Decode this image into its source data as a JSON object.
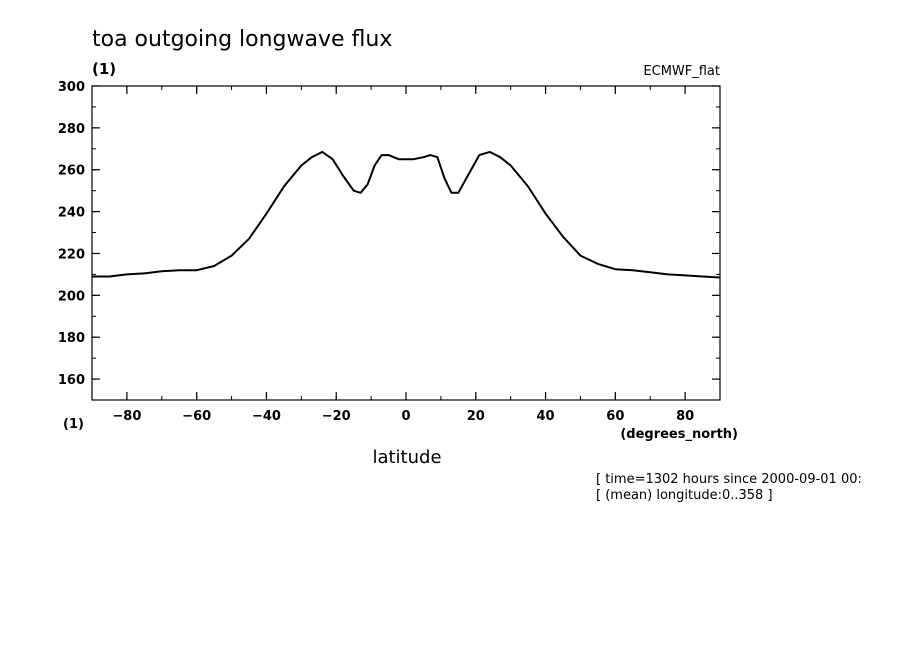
{
  "chart_data": {
    "type": "line",
    "title": "toa outgoing longwave flux",
    "y_unit": "(1)",
    "x_unit_left": "(1)",
    "dataset": "ECMWF_flat",
    "xlabel": "latitude",
    "xunits": "(degrees_north)",
    "xlim": [
      -90,
      90
    ],
    "ylim": [
      150,
      300
    ],
    "xticks": [
      -80,
      -60,
      -40,
      -20,
      0,
      20,
      40,
      60,
      80
    ],
    "yticks": [
      160,
      180,
      200,
      220,
      240,
      260,
      280,
      300
    ],
    "annotations": [
      "[ time=1302 hours since 2000-09-01 00:",
      "[ (mean) longitude:0..358 ]"
    ],
    "series": [
      {
        "x": [
          -90,
          -85,
          -80,
          -75,
          -70,
          -65,
          -60,
          -55,
          -50,
          -45,
          -40,
          -35,
          -30,
          -27,
          -24,
          -21,
          -18,
          -15,
          -13,
          -11,
          -9,
          -7,
          -5,
          -2,
          0,
          2,
          5,
          7,
          9,
          11,
          13,
          15,
          18,
          21,
          24,
          27,
          30,
          35,
          40,
          45,
          50,
          55,
          60,
          65,
          70,
          75,
          80,
          85,
          90
        ],
        "y": [
          209,
          209,
          210,
          210.5,
          211.5,
          212,
          212,
          214,
          219,
          227,
          239,
          252,
          262,
          266,
          268.5,
          265,
          257,
          250,
          249,
          253,
          262,
          267,
          267,
          265,
          265,
          265,
          266,
          267,
          266,
          256,
          249,
          249,
          258,
          267,
          268.5,
          266,
          262,
          252,
          239,
          228,
          219,
          215,
          212.5,
          212,
          211,
          210,
          209.5,
          209,
          208.5
        ]
      }
    ]
  }
}
